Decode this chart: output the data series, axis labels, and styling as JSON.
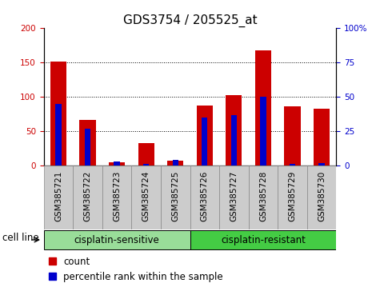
{
  "title": "GDS3754 / 205525_at",
  "samples": [
    "GSM385721",
    "GSM385722",
    "GSM385723",
    "GSM385724",
    "GSM385725",
    "GSM385726",
    "GSM385727",
    "GSM385728",
    "GSM385729",
    "GSM385730"
  ],
  "count": [
    152,
    67,
    5,
    33,
    7,
    87,
    103,
    168,
    86,
    83
  ],
  "percentile": [
    45,
    27,
    3,
    1,
    4,
    35,
    37,
    50,
    1,
    2
  ],
  "groups": [
    {
      "label": "cisplatin-sensitive",
      "start": 0,
      "end": 5,
      "color": "#99dd99"
    },
    {
      "label": "cisplatin-resistant",
      "start": 5,
      "end": 10,
      "color": "#44cc44"
    }
  ],
  "group_label": "cell line",
  "left_axis_color": "#cc0000",
  "right_axis_color": "#0000cc",
  "bar_color_count": "#cc0000",
  "bar_color_pct": "#0000cc",
  "left_ylim": [
    0,
    200
  ],
  "right_ylim": [
    0,
    100
  ],
  "left_yticks": [
    0,
    50,
    100,
    150,
    200
  ],
  "right_yticks": [
    0,
    25,
    50,
    75,
    100
  ],
  "right_ytick_labels": [
    "0",
    "25",
    "50",
    "75",
    "100%"
  ],
  "background_color": "#ffffff",
  "grid_color": "#000000",
  "count_bar_width": 0.55,
  "pct_bar_width": 0.2,
  "title_fontsize": 11,
  "tick_label_fontsize": 7.5,
  "axis_label_fontsize": 8.5,
  "legend_fontsize": 8.5
}
